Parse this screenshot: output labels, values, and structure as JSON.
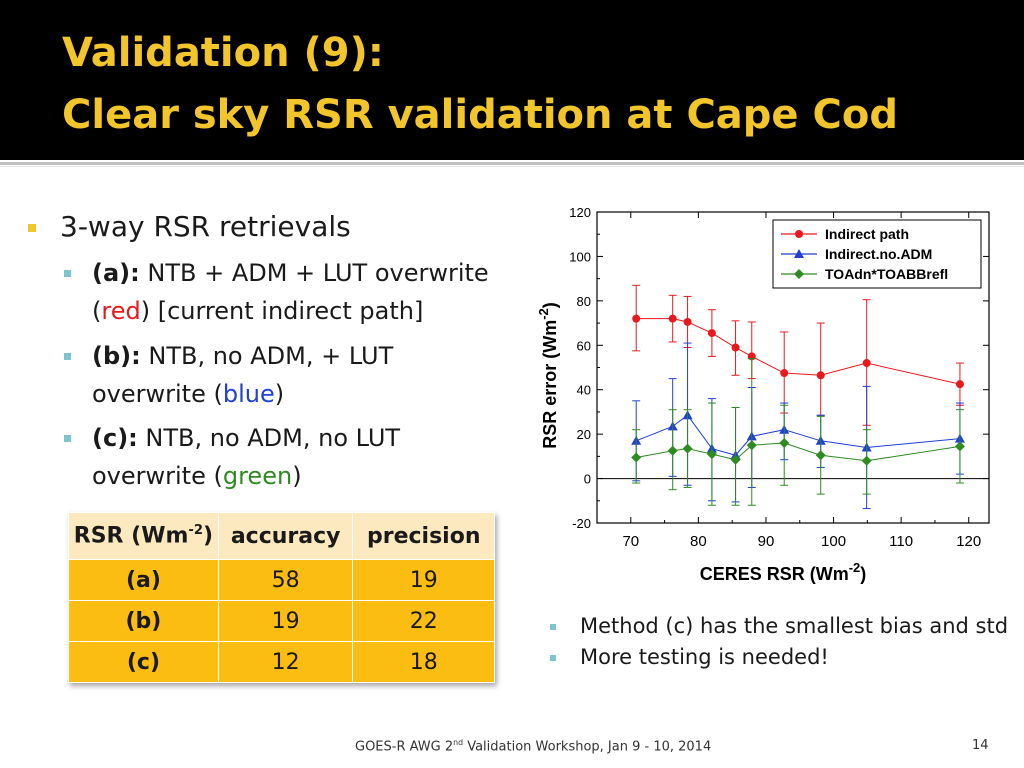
{
  "title": {
    "line1": "Validation (9):",
    "line2": "Clear sky RSR validation at Cape Cod"
  },
  "bullets": {
    "main": "3-way RSR retrievals",
    "items": [
      {
        "label": "(a):",
        "text": "NTB + ADM + LUT overwrite",
        "line2_open": "(",
        "color_word": "red",
        "line2_close": ")  [current indirect path]",
        "color": "#e8191c"
      },
      {
        "label": "(b):",
        "text": "NTB, no ADM, + LUT",
        "line2_open": "overwrite (",
        "color_word": "blue",
        "line2_close": ")",
        "color": "#1f3fd6"
      },
      {
        "label": "(c):",
        "text": "NTB, no ADM, no LUT",
        "line2_open": "overwrite (",
        "color_word": "green",
        "line2_close": ")",
        "color": "#2e8b22"
      }
    ]
  },
  "table": {
    "header_main": "RSR (Wm",
    "header_sup": "-2",
    "header_close": ")",
    "col2": "accuracy",
    "col3": "precision",
    "rows": [
      {
        "name": "(a)",
        "accuracy": "58",
        "precision": "19"
      },
      {
        "name": "(b)",
        "accuracy": "19",
        "precision": "22"
      },
      {
        "name": "(c)",
        "accuracy": "12",
        "precision": "18"
      }
    ]
  },
  "notes": [
    "Method (c) has the smallest bias and std",
    "More testing is needed!"
  ],
  "footer": {
    "pre": "GOES-R AWG 2",
    "sup": "nd",
    "post": " Validation Workshop, Jan 9 - 10, 2014",
    "page": "14"
  },
  "chart_data": {
    "type": "line",
    "title": "",
    "xlabel": "CERES RSR (Wm",
    "xlabel_sup": "-2",
    "xlabel_close": ")",
    "ylabel": "RSR error (Wm",
    "ylabel_sup": "-2",
    "ylabel_close": ")",
    "xlim": [
      65,
      123
    ],
    "ylim": [
      -20,
      120
    ],
    "xticks": [
      70,
      80,
      90,
      100,
      110,
      120
    ],
    "yticks": [
      -20,
      0,
      20,
      40,
      60,
      80,
      100,
      120
    ],
    "x": [
      70.8,
      76.2,
      78.4,
      82.0,
      85.5,
      87.9,
      92.7,
      98.1,
      104.9,
      118.7
    ],
    "legend_position": "top-right",
    "series": [
      {
        "name": "Indirect path",
        "color": "#e8191c",
        "marker": "circle",
        "values": [
          72,
          72,
          70.5,
          65.5,
          59,
          55,
          47.5,
          46.5,
          52,
          42.5
        ],
        "err_lo": [
          57.5,
          61.5,
          59,
          55,
          46.5,
          45,
          29.5,
          28.5,
          24,
          33
        ],
        "err_hi": [
          87,
          82.5,
          82,
          76,
          71,
          70.5,
          66,
          70,
          80.5,
          52
        ]
      },
      {
        "name": "Indirect.no.ADM",
        "color": "#1f3fd6",
        "marker": "triangle",
        "values": [
          17,
          23.5,
          28.5,
          13.5,
          10.5,
          19,
          22,
          17,
          14,
          18
        ],
        "err_lo": [
          -1,
          1,
          -3,
          -10,
          -10.5,
          -4,
          8.5,
          5,
          -13.5,
          2
        ],
        "err_hi": [
          35,
          45,
          61,
          36,
          32,
          41,
          34,
          28.5,
          41.5,
          34
        ]
      },
      {
        "name": "TOAdn*TOABBrefl",
        "color": "#2e8b22",
        "marker": "diamond",
        "values": [
          9.5,
          12.5,
          13.5,
          11,
          8.5,
          15,
          16,
          10.5,
          8,
          14.5
        ],
        "err_lo": [
          -2,
          -5,
          -4,
          -12,
          -12,
          -12,
          -3,
          -7,
          -7,
          -2
        ],
        "err_hi": [
          22,
          31,
          31,
          34,
          32,
          54,
          33,
          28,
          22,
          31
        ]
      }
    ]
  }
}
